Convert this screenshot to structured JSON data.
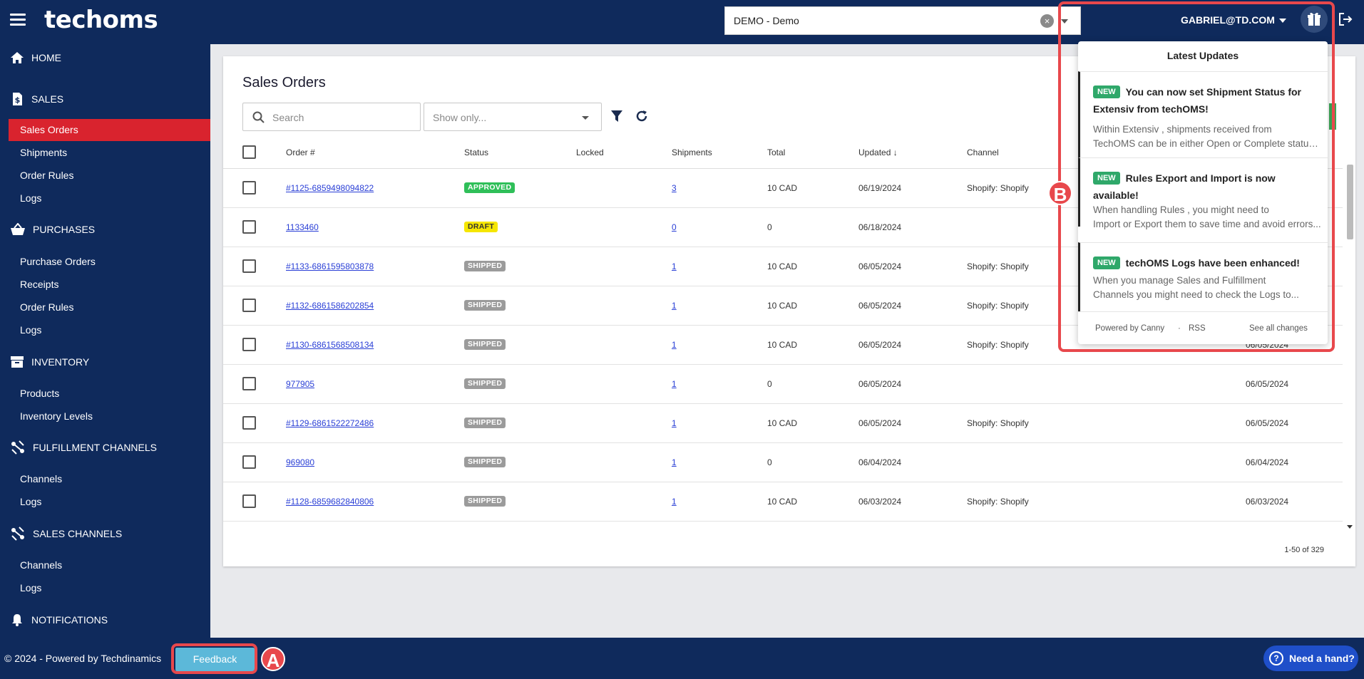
{
  "topbar": {
    "logo": "techoms",
    "tenant": {
      "value": "DEMO - Demo"
    },
    "user": "GABRIEL@TD.COM"
  },
  "sidebar": {
    "sections": [
      {
        "label": "HOME",
        "icon": "home-icon",
        "items": []
      },
      {
        "label": "SALES",
        "icon": "dollar-document-icon",
        "items": [
          "Sales Orders",
          "Shipments",
          "Order Rules",
          "Logs"
        ]
      },
      {
        "label": "PURCHASES",
        "icon": "basket-icon",
        "items": [
          "Purchase Orders",
          "Receipts",
          "Order Rules",
          "Logs"
        ]
      },
      {
        "label": "INVENTORY",
        "icon": "archive-box-icon",
        "items": [
          "Products",
          "Inventory Levels"
        ]
      },
      {
        "label": "FULFILLMENT CHANNELS",
        "icon": "channels-icon",
        "items": [
          "Channels",
          "Logs"
        ]
      },
      {
        "label": "SALES CHANNELS",
        "icon": "channels-icon",
        "items": [
          "Channels",
          "Logs"
        ]
      },
      {
        "label": "NOTIFICATIONS",
        "icon": "bell-icon",
        "items": []
      }
    ],
    "active_item": "Sales Orders"
  },
  "main": {
    "title": "Sales Orders",
    "search_placeholder": "Search",
    "show_only_placeholder": "Show only...",
    "columns": [
      "Order #",
      "Status",
      "Locked",
      "Shipments",
      "Total",
      "Updated",
      "Channel"
    ],
    "sort_column": "Updated",
    "rows": [
      {
        "order": "#1125-6859498094822",
        "status": "APPROVED",
        "shipments": "3",
        "total": "10 CAD",
        "updated": "06/19/2024",
        "channel": "Shopify: Shopify",
        "extra": ""
      },
      {
        "order": "1133460",
        "status": "DRAFT",
        "shipments": "0",
        "total": "0",
        "updated": "06/18/2024",
        "channel": "",
        "extra": ""
      },
      {
        "order": "#1133-6861595803878",
        "status": "SHIPPED",
        "shipments": "1",
        "total": "10 CAD",
        "updated": "06/05/2024",
        "channel": "Shopify: Shopify",
        "extra": ""
      },
      {
        "order": "#1132-6861586202854",
        "status": "SHIPPED",
        "shipments": "1",
        "total": "10 CAD",
        "updated": "06/05/2024",
        "channel": "Shopify: Shopify",
        "extra": ""
      },
      {
        "order": "#1130-6861568508134",
        "status": "SHIPPED",
        "shipments": "1",
        "total": "10 CAD",
        "updated": "06/05/2024",
        "channel": "Shopify: Shopify",
        "extra": "06/05/2024"
      },
      {
        "order": "977905",
        "status": "SHIPPED",
        "shipments": "1",
        "total": "0",
        "updated": "06/05/2024",
        "channel": "",
        "extra": "06/05/2024"
      },
      {
        "order": "#1129-6861522272486",
        "status": "SHIPPED",
        "shipments": "1",
        "total": "10 CAD",
        "updated": "06/05/2024",
        "channel": "Shopify: Shopify",
        "extra": "06/05/2024"
      },
      {
        "order": "969080",
        "status": "SHIPPED",
        "shipments": "1",
        "total": "0",
        "updated": "06/04/2024",
        "channel": "",
        "extra": "06/04/2024"
      },
      {
        "order": "#1128-6859682840806",
        "status": "SHIPPED",
        "shipments": "1",
        "total": "10 CAD",
        "updated": "06/03/2024",
        "channel": "Shopify: Shopify",
        "extra": "06/03/2024"
      }
    ],
    "pagination": "1-50 of 329"
  },
  "updates": {
    "title": "Latest Updates",
    "items": [
      {
        "badge": "NEW",
        "title": "You can now set Shipment Status for Extensiv from techOMS!",
        "desc": [
          "Within Extensiv , shipments received from",
          "TechOMS can be in either Open or Complete status..."
        ]
      },
      {
        "badge": "NEW",
        "title": "Rules Export and Import is now available!",
        "desc": [
          "When handling Rules , you might need to",
          "Import or Export them to save time and avoid errors..."
        ]
      },
      {
        "badge": "NEW",
        "title": "techOMS Logs have been enhanced!",
        "desc": [
          "When you manage Sales and Fulfillment",
          "Channels you might need to check the Logs to..."
        ]
      }
    ],
    "powered_by": "Powered by Canny",
    "separator": "·",
    "rss": "RSS",
    "see_all": "See all changes"
  },
  "footer": {
    "copyright": "© 2024 - Powered by Techdinamics",
    "feedback": "Feedback",
    "help": "Need a hand?"
  },
  "annotations": {
    "a": "A",
    "b": "B"
  },
  "colors": {
    "navy": "#0f2a5c",
    "active_red": "#d9232e",
    "approved": "#2fbf59",
    "draft": "#f5e600",
    "shipped": "#9b9b9b",
    "new_badge": "#2fa86a",
    "annotation": "#e8484c"
  }
}
